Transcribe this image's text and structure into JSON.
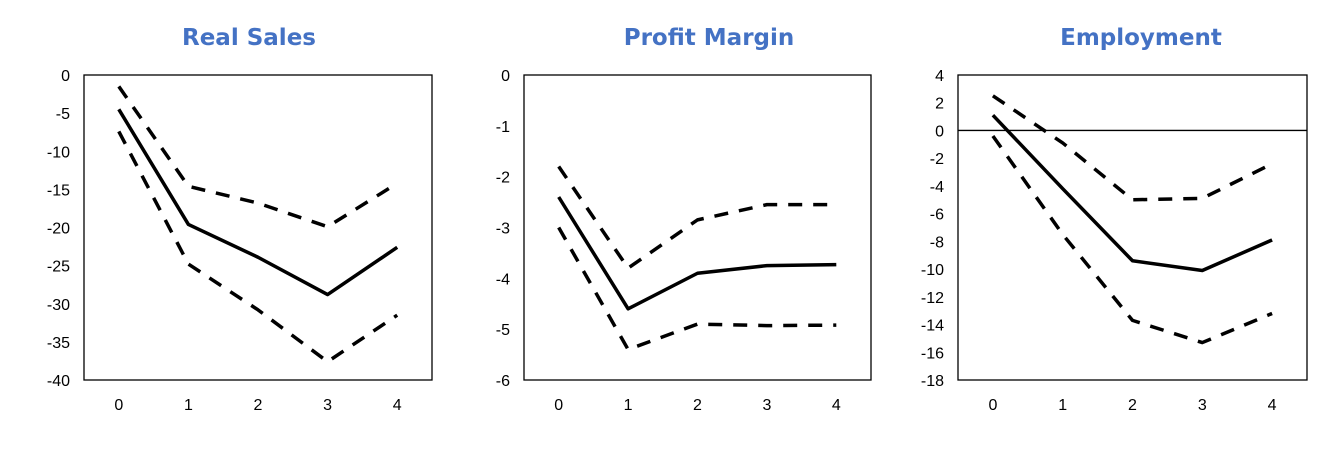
{
  "colors": {
    "title": "#4472C4",
    "line": "#000000",
    "frame": "#000000"
  },
  "chart_data": [
    {
      "type": "line",
      "title": "Real Sales",
      "x": [
        0,
        1,
        2,
        3,
        4
      ],
      "ylim": [
        -40,
        0
      ],
      "yticks": [
        0,
        -5,
        -10,
        -15,
        -20,
        -25,
        -30,
        -35,
        -40
      ],
      "zero_line": false,
      "grid": false,
      "series": [
        {
          "style": "solid",
          "values": [
            -4.5,
            -19.6,
            -23.9,
            -28.8,
            -22.6
          ]
        },
        {
          "style": "dashed",
          "values": [
            -1.5,
            -14.6,
            -16.8,
            -19.9,
            -14.2
          ]
        },
        {
          "style": "dashed",
          "values": [
            -7.4,
            -24.8,
            -30.8,
            -37.6,
            -31.5
          ]
        }
      ]
    },
    {
      "type": "line",
      "title": "Profit Margin",
      "x": [
        0,
        1,
        2,
        3,
        4
      ],
      "ylim": [
        -6,
        0
      ],
      "yticks": [
        0,
        -1,
        -2,
        -3,
        -4,
        -5,
        -6
      ],
      "zero_line": false,
      "grid": false,
      "series": [
        {
          "style": "solid",
          "values": [
            -2.4,
            -4.6,
            -3.9,
            -3.75,
            -3.73
          ]
        },
        {
          "style": "dashed",
          "values": [
            -1.8,
            -3.8,
            -2.85,
            -2.55,
            -2.55
          ]
        },
        {
          "style": "dashed",
          "values": [
            -3.0,
            -5.4,
            -4.9,
            -4.93,
            -4.92
          ]
        }
      ]
    },
    {
      "type": "line",
      "title": "Employment",
      "x": [
        0,
        1,
        2,
        3,
        4
      ],
      "ylim": [
        -18,
        4
      ],
      "yticks": [
        4,
        2,
        0,
        -2,
        -4,
        -6,
        -8,
        -10,
        -12,
        -14,
        -16,
        -18
      ],
      "zero_line": true,
      "grid": false,
      "series": [
        {
          "style": "solid",
          "values": [
            1.1,
            -4.2,
            -9.4,
            -10.1,
            -7.9
          ]
        },
        {
          "style": "dashed",
          "values": [
            2.5,
            -0.9,
            -5.0,
            -4.9,
            -2.4
          ]
        },
        {
          "style": "dashed",
          "values": [
            -0.4,
            -7.5,
            -13.7,
            -15.3,
            -13.2
          ]
        }
      ]
    }
  ]
}
